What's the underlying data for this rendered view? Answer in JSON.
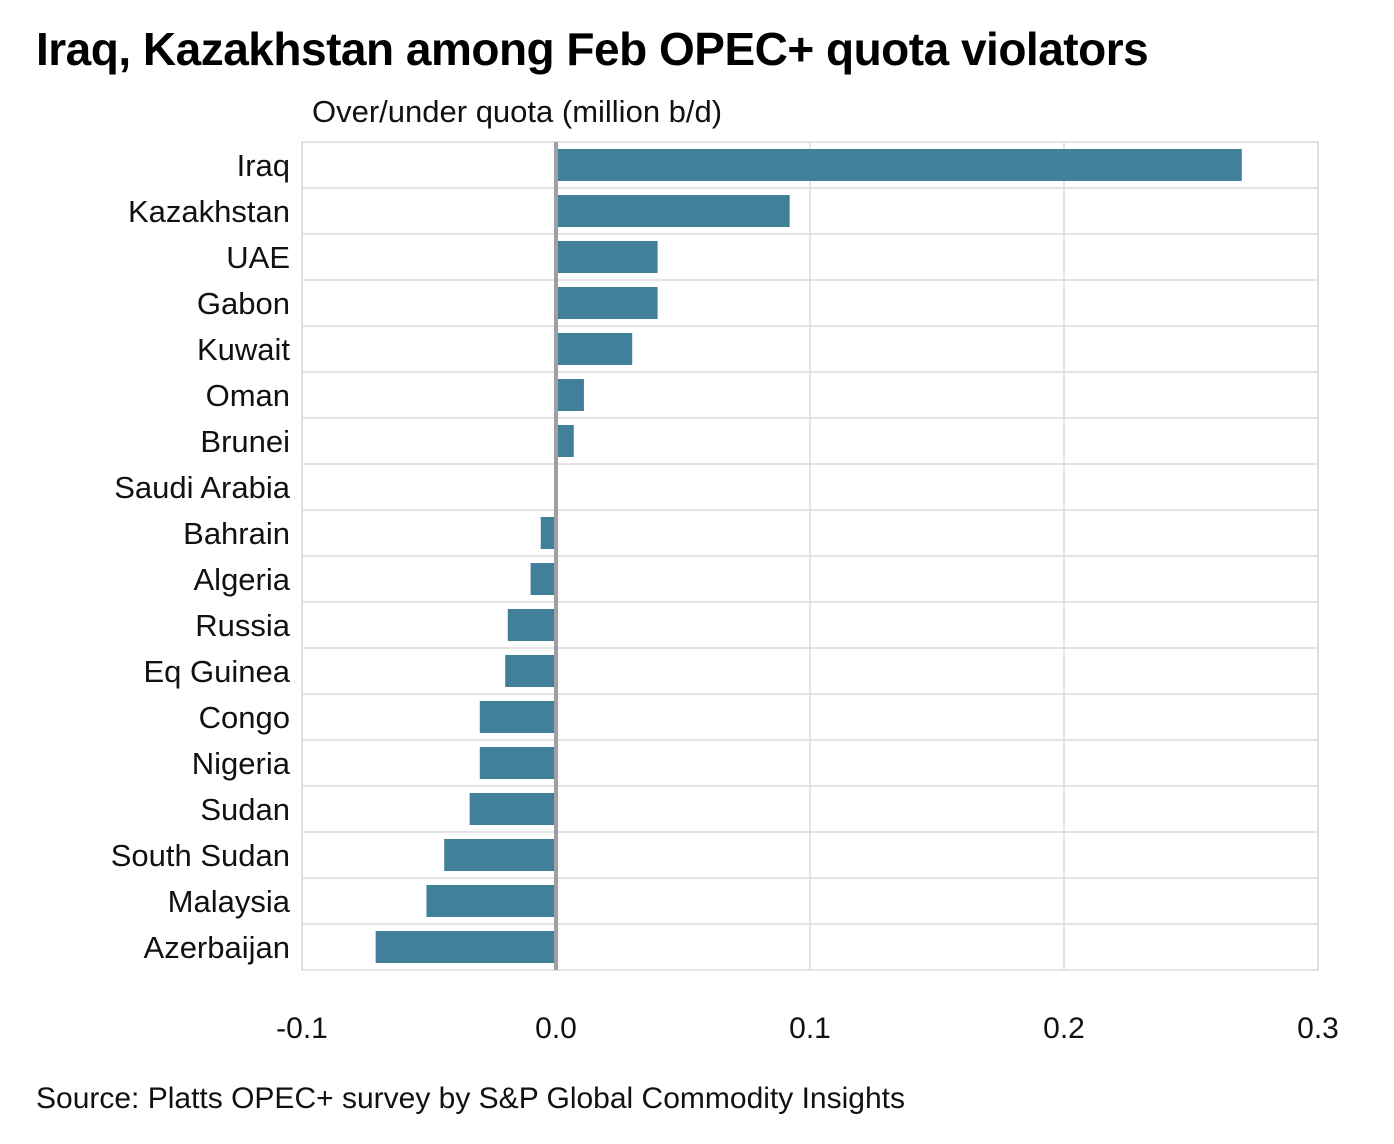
{
  "chart_data": {
    "type": "bar",
    "orientation": "horizontal",
    "title": "Iraq, Kazakhstan among Feb OPEC+ quota violators",
    "subtitle": "Over/under quota (million b/d)",
    "source": "Source: Platts OPEC+ survey by S&P Global Commodity Insights",
    "categories": [
      "Iraq",
      "Kazakhstan",
      "UAE",
      "Gabon",
      "Kuwait",
      "Oman",
      "Brunei",
      "Saudi Arabia",
      "Bahrain",
      "Algeria",
      "Russia",
      "Eq Guinea",
      "Congo",
      "Nigeria",
      "Sudan",
      "South Sudan",
      "Malaysia",
      "Azerbaijan"
    ],
    "values": [
      0.27,
      0.092,
      0.04,
      0.04,
      0.03,
      0.011,
      0.007,
      0,
      -0.006,
      -0.01,
      -0.019,
      -0.02,
      -0.03,
      -0.03,
      -0.034,
      -0.044,
      -0.051,
      -0.071
    ],
    "xlim": [
      -0.1,
      0.3
    ],
    "xticks": [
      "-0.1",
      "0.0",
      "0.1",
      "0.2",
      "0.3"
    ],
    "grid": true,
    "bar_color": "#41809a",
    "zero_line_color": "#a0a0a4"
  }
}
